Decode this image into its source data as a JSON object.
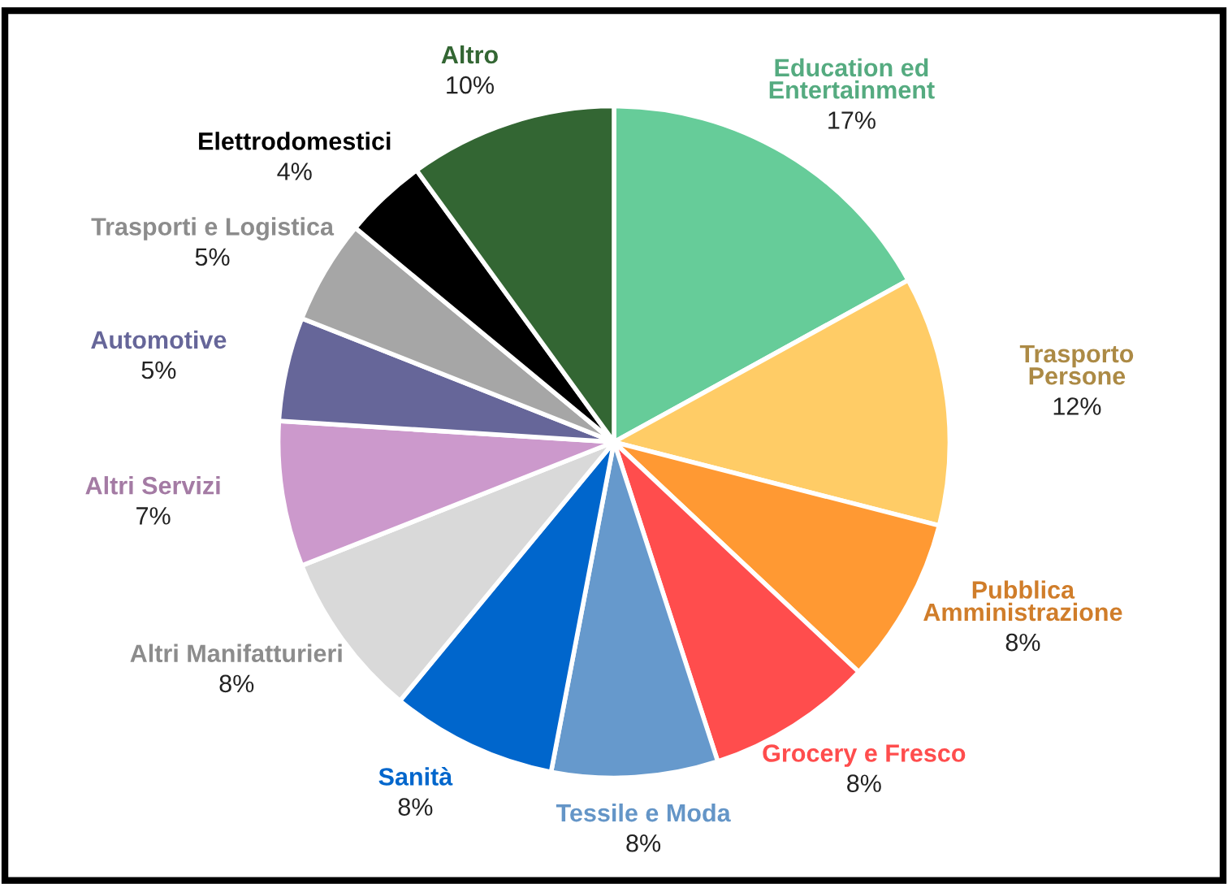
{
  "chart_data": {
    "type": "pie",
    "categories": [
      "Education ed\nEntertainment",
      "Trasporto\nPersone",
      "Pubblica\nAmministrazione",
      "Grocery e Fresco",
      "Tessile e Moda",
      "Sanità",
      "Altri Manifatturieri",
      "Altri Servizi",
      "Automotive",
      "Trasporti e Logistica",
      "Elettrodomestici",
      "Altro"
    ],
    "values": [
      17,
      12,
      8,
      8,
      8,
      8,
      8,
      7,
      5,
      5,
      4,
      10
    ],
    "value_labels": [
      "17%",
      "12%",
      "8%",
      "8%",
      "8%",
      "8%",
      "8%",
      "7%",
      "5%",
      "5%",
      "4%",
      "10%"
    ],
    "colors": [
      "#66cc99",
      "#ffcc66",
      "#ff9933",
      "#ff4d4d",
      "#6699cc",
      "#0066cc",
      "#d9d9d9",
      "#cc99cc",
      "#666699",
      "#a6a6a6",
      "#000000",
      "#336633"
    ],
    "legend": false
  }
}
